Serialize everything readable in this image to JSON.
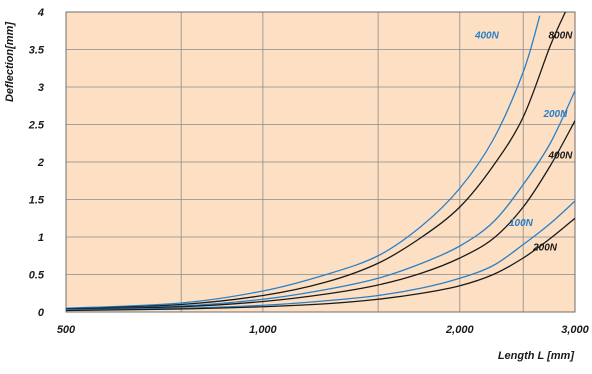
{
  "chart_data": {
    "type": "line",
    "title": "",
    "xlabel": "Length L [mm]",
    "ylabel": "Deflection[mm]",
    "x_scale": "log",
    "xlim": [
      500,
      3000
    ],
    "ylim": [
      0,
      4
    ],
    "x_ticks": [
      {
        "value": 500,
        "label": "500"
      },
      {
        "value": 1000,
        "label": "1,000"
      },
      {
        "value": 2000,
        "label": "2,000"
      },
      {
        "value": 3000,
        "label": "3,000"
      }
    ],
    "y_ticks": [
      {
        "value": 0,
        "label": "0"
      },
      {
        "value": 0.5,
        "label": "0.5"
      },
      {
        "value": 1,
        "label": "1"
      },
      {
        "value": 1.5,
        "label": "1.5"
      },
      {
        "value": 2,
        "label": "2"
      },
      {
        "value": 2.5,
        "label": "2.5"
      },
      {
        "value": 3,
        "label": "3"
      },
      {
        "value": 3.5,
        "label": "3.5"
      },
      {
        "value": 4,
        "label": "4"
      }
    ],
    "grid": true,
    "grid_x_lines": [
      500,
      750,
      1000,
      1500,
      2000,
      2500,
      3000
    ],
    "background_color": "#fde0c3",
    "series": [
      {
        "name": "400N",
        "color": "#2a80c8",
        "points": [
          [
            500,
            0.05
          ],
          [
            750,
            0.12
          ],
          [
            1000,
            0.28
          ],
          [
            1250,
            0.5
          ],
          [
            1500,
            0.75
          ],
          [
            1750,
            1.15
          ],
          [
            2000,
            1.65
          ],
          [
            2250,
            2.3
          ],
          [
            2500,
            3.2
          ],
          [
            2650,
            3.95
          ]
        ],
        "label_value": [
          2200,
          3.65
        ]
      },
      {
        "name": "800N",
        "color": "#1a1a1a",
        "points": [
          [
            500,
            0.04
          ],
          [
            750,
            0.1
          ],
          [
            1000,
            0.22
          ],
          [
            1250,
            0.4
          ],
          [
            1500,
            0.65
          ],
          [
            1750,
            1.0
          ],
          [
            2000,
            1.4
          ],
          [
            2250,
            1.95
          ],
          [
            2500,
            2.6
          ],
          [
            2750,
            3.55
          ],
          [
            2900,
            4.0
          ]
        ],
        "label_value": [
          2850,
          3.65
        ]
      },
      {
        "name": "200N",
        "color": "#2a80c8",
        "points": [
          [
            500,
            0.04
          ],
          [
            750,
            0.08
          ],
          [
            1000,
            0.17
          ],
          [
            1250,
            0.3
          ],
          [
            1500,
            0.45
          ],
          [
            1750,
            0.65
          ],
          [
            2000,
            0.88
          ],
          [
            2250,
            1.2
          ],
          [
            2500,
            1.7
          ],
          [
            2750,
            2.25
          ],
          [
            3000,
            2.95
          ]
        ],
        "label_value": [
          2800,
          2.6
        ]
      },
      {
        "name": "400N",
        "color": "#1a1a1a",
        "points": [
          [
            500,
            0.04
          ],
          [
            750,
            0.07
          ],
          [
            1000,
            0.14
          ],
          [
            1250,
            0.24
          ],
          [
            1500,
            0.36
          ],
          [
            1750,
            0.52
          ],
          [
            2000,
            0.72
          ],
          [
            2250,
            0.98
          ],
          [
            2500,
            1.4
          ],
          [
            2750,
            1.95
          ],
          [
            3000,
            2.55
          ]
        ],
        "label_value": [
          2850,
          2.05
        ]
      },
      {
        "name": "100N",
        "color": "#2a80c8",
        "points": [
          [
            500,
            0.03
          ],
          [
            750,
            0.05
          ],
          [
            1000,
            0.09
          ],
          [
            1250,
            0.15
          ],
          [
            1500,
            0.22
          ],
          [
            1750,
            0.32
          ],
          [
            2000,
            0.45
          ],
          [
            2250,
            0.62
          ],
          [
            2500,
            0.9
          ],
          [
            2750,
            1.18
          ],
          [
            3000,
            1.48
          ]
        ],
        "label_value": [
          2480,
          1.15
        ]
      },
      {
        "name": "200N",
        "color": "#1a1a1a",
        "points": [
          [
            500,
            0.02
          ],
          [
            750,
            0.04
          ],
          [
            1000,
            0.07
          ],
          [
            1250,
            0.11
          ],
          [
            1500,
            0.17
          ],
          [
            1750,
            0.25
          ],
          [
            2000,
            0.35
          ],
          [
            2250,
            0.5
          ],
          [
            2500,
            0.72
          ],
          [
            2750,
            0.98
          ],
          [
            3000,
            1.25
          ]
        ],
        "label_value": [
          2700,
          0.82
        ]
      }
    ]
  }
}
